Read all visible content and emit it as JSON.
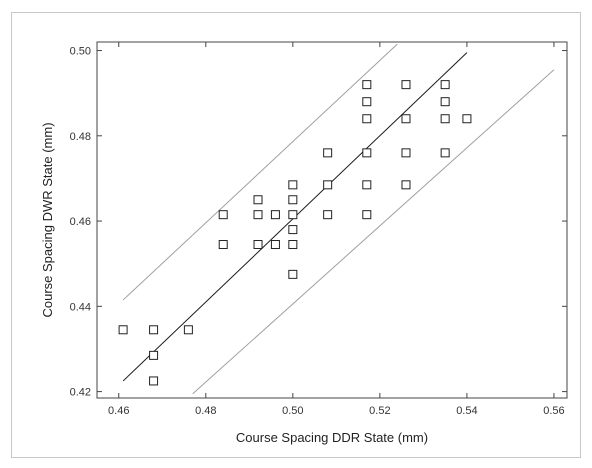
{
  "chart_data": {
    "type": "scatter",
    "title": "",
    "xlabel": "Course Spacing DDR State (mm)",
    "ylabel": "Course Spacing DWR State (mm)",
    "xlim": [
      0.455,
      0.563
    ],
    "ylim": [
      0.4185,
      0.502
    ],
    "xticks": [
      "0.46",
      "0.48",
      "0.50",
      "0.52",
      "0.54",
      "0.56"
    ],
    "yticks": [
      "0.42",
      "0.44",
      "0.46",
      "0.48",
      "0.50"
    ],
    "points": [
      {
        "x": 0.461,
        "y": 0.4345
      },
      {
        "x": 0.468,
        "y": 0.4345
      },
      {
        "x": 0.468,
        "y": 0.4285
      },
      {
        "x": 0.468,
        "y": 0.4225
      },
      {
        "x": 0.476,
        "y": 0.4345
      },
      {
        "x": 0.484,
        "y": 0.4615
      },
      {
        "x": 0.484,
        "y": 0.4545
      },
      {
        "x": 0.492,
        "y": 0.465
      },
      {
        "x": 0.492,
        "y": 0.4615
      },
      {
        "x": 0.492,
        "y": 0.4545
      },
      {
        "x": 0.496,
        "y": 0.4615
      },
      {
        "x": 0.496,
        "y": 0.4545
      },
      {
        "x": 0.5,
        "y": 0.4685
      },
      {
        "x": 0.5,
        "y": 0.465
      },
      {
        "x": 0.5,
        "y": 0.4615
      },
      {
        "x": 0.5,
        "y": 0.458
      },
      {
        "x": 0.5,
        "y": 0.4545
      },
      {
        "x": 0.5,
        "y": 0.4475
      },
      {
        "x": 0.508,
        "y": 0.476
      },
      {
        "x": 0.508,
        "y": 0.4685
      },
      {
        "x": 0.508,
        "y": 0.4615
      },
      {
        "x": 0.517,
        "y": 0.492
      },
      {
        "x": 0.517,
        "y": 0.488
      },
      {
        "x": 0.517,
        "y": 0.484
      },
      {
        "x": 0.517,
        "y": 0.476
      },
      {
        "x": 0.517,
        "y": 0.4685
      },
      {
        "x": 0.517,
        "y": 0.4615
      },
      {
        "x": 0.526,
        "y": 0.492
      },
      {
        "x": 0.526,
        "y": 0.484
      },
      {
        "x": 0.526,
        "y": 0.476
      },
      {
        "x": 0.526,
        "y": 0.4685
      },
      {
        "x": 0.535,
        "y": 0.492
      },
      {
        "x": 0.535,
        "y": 0.488
      },
      {
        "x": 0.535,
        "y": 0.484
      },
      {
        "x": 0.535,
        "y": 0.476
      },
      {
        "x": 0.54,
        "y": 0.484
      }
    ],
    "fit_line": [
      {
        "x": 0.461,
        "y": 0.4225
      },
      {
        "x": 0.54,
        "y": 0.4995
      }
    ],
    "upper_bound": [
      {
        "x": 0.461,
        "y": 0.4415
      },
      {
        "x": 0.524,
        "y": 0.5015
      }
    ],
    "lower_bound": [
      {
        "x": 0.477,
        "y": 0.4195
      },
      {
        "x": 0.56,
        "y": 0.4955
      }
    ],
    "grid": false,
    "marker": "open-square",
    "colors": {
      "marker": "#222222",
      "fit_line": "#1a1a1a",
      "bounds": "#a0a0a0",
      "axis": "#444444"
    }
  }
}
